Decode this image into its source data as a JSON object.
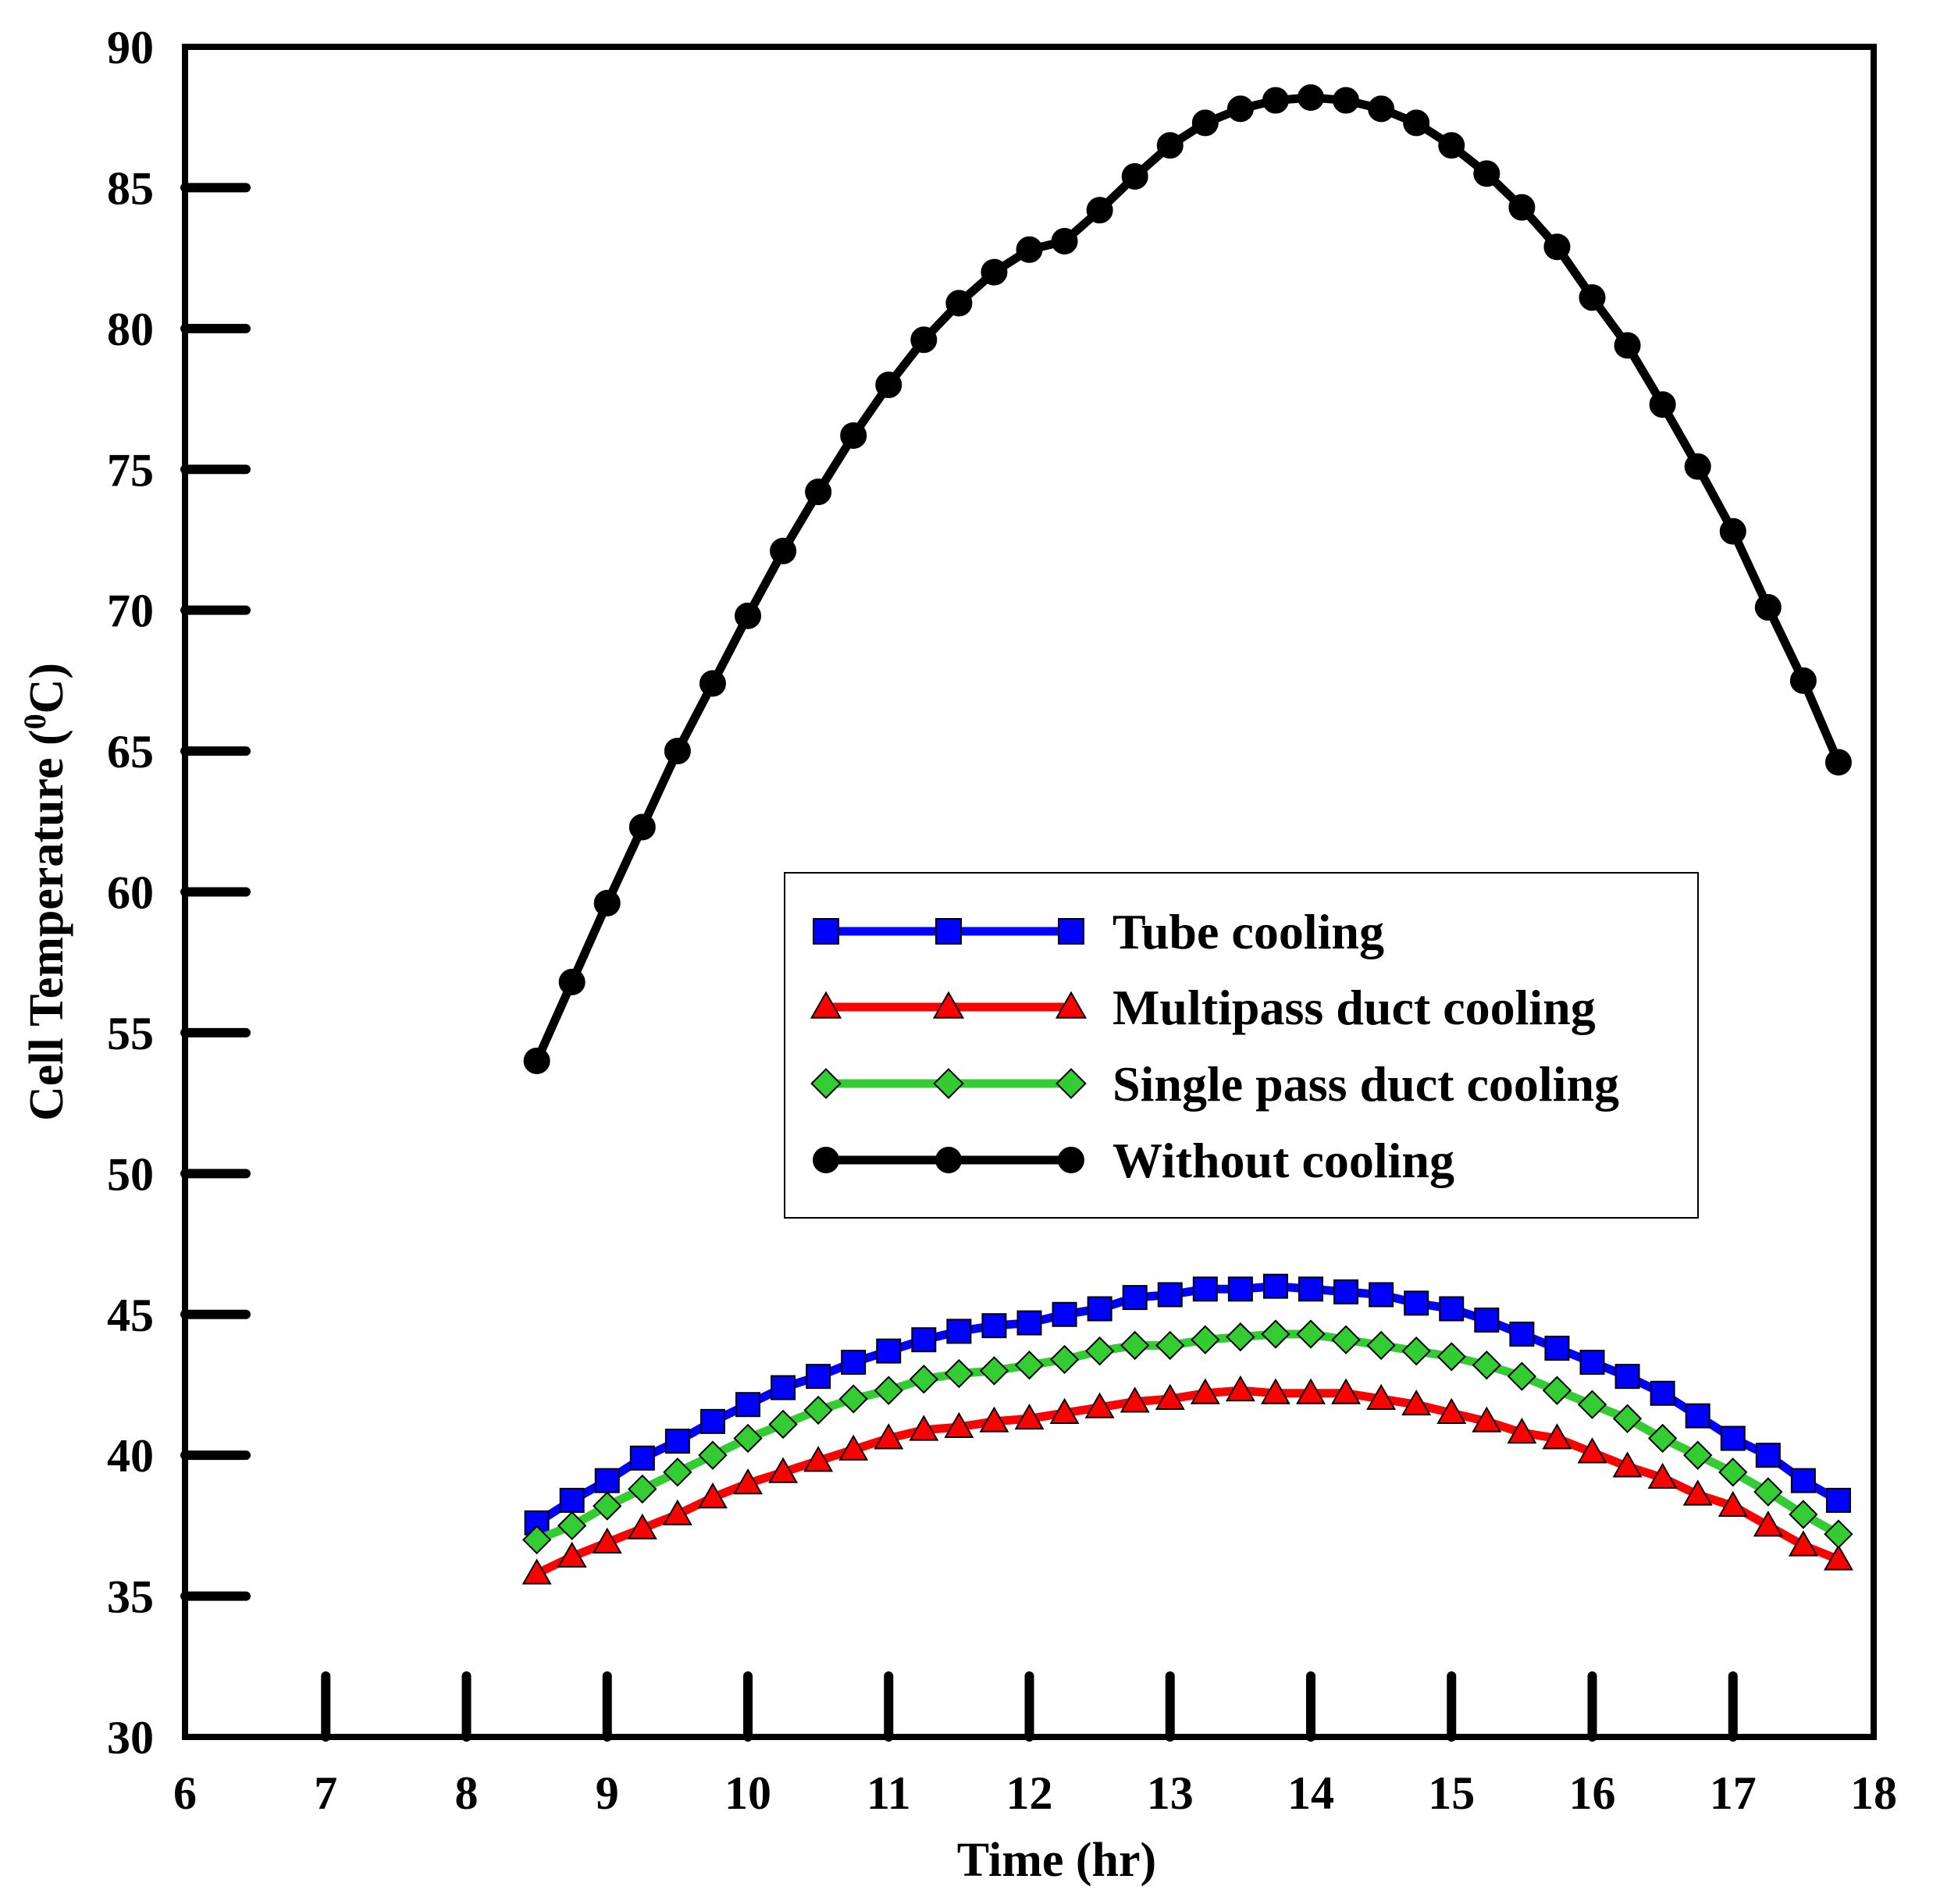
{
  "chart_data": {
    "type": "line",
    "title": "",
    "xlabel": "Time (hr)",
    "ylabel_main": "Cell Temperature (",
    "ylabel_sup": "0",
    "ylabel_end": "C)",
    "xlim": [
      6,
      18
    ],
    "ylim": [
      30,
      90
    ],
    "xticks": [
      6,
      7,
      8,
      9,
      10,
      11,
      12,
      13,
      14,
      15,
      16,
      17,
      18
    ],
    "yticks": [
      30,
      35,
      40,
      45,
      50,
      55,
      60,
      65,
      70,
      75,
      80,
      85,
      90
    ],
    "grid": false,
    "legend_position": "center-right",
    "x": [
      8.5,
      8.75,
      9.0,
      9.25,
      9.5,
      9.75,
      10.0,
      10.25,
      10.5,
      10.75,
      11.0,
      11.25,
      11.5,
      11.75,
      12.0,
      12.25,
      12.5,
      12.75,
      13.0,
      13.25,
      13.5,
      13.75,
      14.0,
      14.25,
      14.5,
      14.75,
      15.0,
      15.25,
      15.5,
      15.75,
      16.0,
      16.25,
      16.5,
      16.75,
      17.0,
      17.25,
      17.5,
      17.75
    ],
    "series": [
      {
        "name": "Tube cooling",
        "color": "#0000ff",
        "marker": "square",
        "values": [
          37.6,
          38.4,
          39.1,
          39.9,
          40.5,
          41.2,
          41.8,
          42.4,
          42.8,
          43.3,
          43.7,
          44.1,
          44.4,
          44.6,
          44.7,
          45.0,
          45.2,
          45.6,
          45.7,
          45.9,
          45.9,
          46.0,
          45.9,
          45.8,
          45.7,
          45.4,
          45.2,
          44.8,
          44.3,
          43.8,
          43.3,
          42.8,
          42.2,
          41.4,
          40.6,
          40.0,
          39.1,
          38.4
        ]
      },
      {
        "name": "Multipass duct cooling",
        "color": "#ff0000",
        "marker": "triangle",
        "values": [
          35.8,
          36.4,
          36.9,
          37.4,
          37.9,
          38.5,
          39.0,
          39.4,
          39.8,
          40.2,
          40.6,
          40.9,
          41.0,
          41.2,
          41.3,
          41.5,
          41.7,
          41.9,
          42.0,
          42.2,
          42.3,
          42.2,
          42.2,
          42.2,
          42.0,
          41.8,
          41.5,
          41.2,
          40.8,
          40.6,
          40.1,
          39.6,
          39.2,
          38.6,
          38.2,
          37.5,
          36.8,
          36.3
        ]
      },
      {
        "name": "Single pass duct cooling",
        "color": "#33cc33",
        "marker": "diamond",
        "values": [
          37.0,
          37.5,
          38.2,
          38.8,
          39.4,
          40.0,
          40.6,
          41.1,
          41.6,
          42.0,
          42.3,
          42.7,
          42.9,
          43.0,
          43.2,
          43.4,
          43.7,
          43.9,
          43.9,
          44.1,
          44.2,
          44.3,
          44.3,
          44.1,
          43.9,
          43.7,
          43.5,
          43.2,
          42.8,
          42.3,
          41.8,
          41.3,
          40.6,
          40.0,
          39.4,
          38.7,
          37.9,
          37.2
        ]
      },
      {
        "name": "Without cooling",
        "color": "#000000",
        "marker": "circle",
        "values": [
          54.0,
          56.8,
          59.6,
          62.3,
          65.0,
          67.4,
          69.8,
          72.1,
          74.2,
          76.2,
          78.0,
          79.6,
          80.9,
          82.0,
          82.8,
          83.1,
          84.2,
          85.4,
          86.5,
          87.3,
          87.8,
          88.1,
          88.2,
          88.1,
          87.8,
          87.3,
          86.5,
          85.5,
          84.3,
          82.9,
          81.1,
          79.4,
          77.3,
          75.1,
          72.8,
          70.1,
          67.5,
          64.6
        ]
      }
    ]
  }
}
